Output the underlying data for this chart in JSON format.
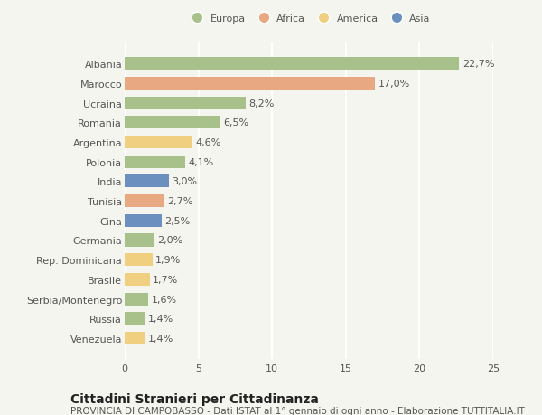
{
  "countries": [
    "Albania",
    "Marocco",
    "Ucraina",
    "Romania",
    "Argentina",
    "Polonia",
    "India",
    "Tunisia",
    "Cina",
    "Germania",
    "Rep. Dominicana",
    "Brasile",
    "Serbia/Montenegro",
    "Russia",
    "Venezuela"
  ],
  "values": [
    22.7,
    17.0,
    8.2,
    6.5,
    4.6,
    4.1,
    3.0,
    2.7,
    2.5,
    2.0,
    1.9,
    1.7,
    1.6,
    1.4,
    1.4
  ],
  "labels": [
    "22,7%",
    "17,0%",
    "8,2%",
    "6,5%",
    "4,6%",
    "4,1%",
    "3,0%",
    "2,7%",
    "2,5%",
    "2,0%",
    "1,9%",
    "1,7%",
    "1,6%",
    "1,4%",
    "1,4%"
  ],
  "continents": [
    "Europa",
    "Africa",
    "Europa",
    "Europa",
    "America",
    "Europa",
    "Asia",
    "Africa",
    "Asia",
    "Europa",
    "America",
    "America",
    "Europa",
    "Europa",
    "America"
  ],
  "colors": {
    "Europa": "#a8c08a",
    "Africa": "#e8a882",
    "America": "#f0d080",
    "Asia": "#6b8fbf"
  },
  "legend_order": [
    "Europa",
    "Africa",
    "America",
    "Asia"
  ],
  "xlim": [
    0,
    25
  ],
  "xticks": [
    0,
    5,
    10,
    15,
    20,
    25
  ],
  "title": "Cittadini Stranieri per Cittadinanza",
  "subtitle": "PROVINCIA DI CAMPOBASSO - Dati ISTAT al 1° gennaio di ogni anno - Elaborazione TUTTITALIA.IT",
  "bg_color": "#f5f5f0",
  "grid_color": "#ffffff",
  "bar_height": 0.65,
  "label_fontsize": 8,
  "tick_fontsize": 8,
  "title_fontsize": 10,
  "subtitle_fontsize": 7.5
}
